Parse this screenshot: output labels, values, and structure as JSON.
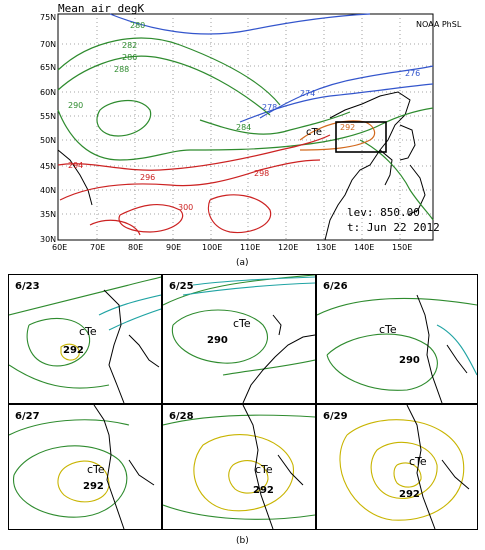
{
  "main_map": {
    "title": "Mean air degK",
    "source": "NOAA PhSL",
    "level_label": "lev: 850.00",
    "time_label": "t: Jun 22 2012",
    "cte_label": "cTe",
    "lat_ticks": [
      "75N",
      "70N",
      "65N",
      "60N",
      "55N",
      "50N",
      "45N",
      "40N",
      "35N",
      "30N"
    ],
    "lon_ticks": [
      "60E",
      "70E",
      "80E",
      "90E",
      "100E",
      "110E",
      "120E",
      "130E",
      "140E",
      "150E"
    ],
    "contour_labels": [
      {
        "text": "280",
        "color": "#2e8b2e"
      },
      {
        "text": "282",
        "color": "#2e8b2e"
      },
      {
        "text": "286",
        "color": "#2e8b2e"
      },
      {
        "text": "288",
        "color": "#2e8b2e"
      },
      {
        "text": "290",
        "color": "#2e8b2e"
      },
      {
        "text": "294",
        "color": "#cc2222"
      },
      {
        "text": "296",
        "color": "#cc2222"
      },
      {
        "text": "298",
        "color": "#cc2222"
      },
      {
        "text": "300",
        "color": "#cc2222"
      },
      {
        "text": "292",
        "color": "#d2691e"
      },
      {
        "text": "274",
        "color": "#3355cc"
      },
      {
        "text": "276",
        "color": "#3355cc"
      },
      {
        "text": "278",
        "color": "#3355cc"
      },
      {
        "text": "284",
        "color": "#2e8b2e"
      }
    ]
  },
  "caption_a": "(a)",
  "caption_b": "(b)",
  "panels": [
    {
      "date": "6/23",
      "cte": "cTe",
      "temp": "292"
    },
    {
      "date": "6/25",
      "cte": "cTe",
      "temp": "290"
    },
    {
      "date": "6/26",
      "cte": "cTe",
      "temp": "290"
    },
    {
      "date": "6/27",
      "cte": "cTe",
      "temp": "292"
    },
    {
      "date": "6/28",
      "cte": "cTe",
      "temp": "292"
    },
    {
      "date": "6/29",
      "cte": "cTe",
      "temp": "292"
    }
  ],
  "colors": {
    "cold": "#3355cc",
    "mid": "#2e8b2e",
    "warm": "#cc2222",
    "box": "#000000",
    "yellow": "#c8b400"
  }
}
